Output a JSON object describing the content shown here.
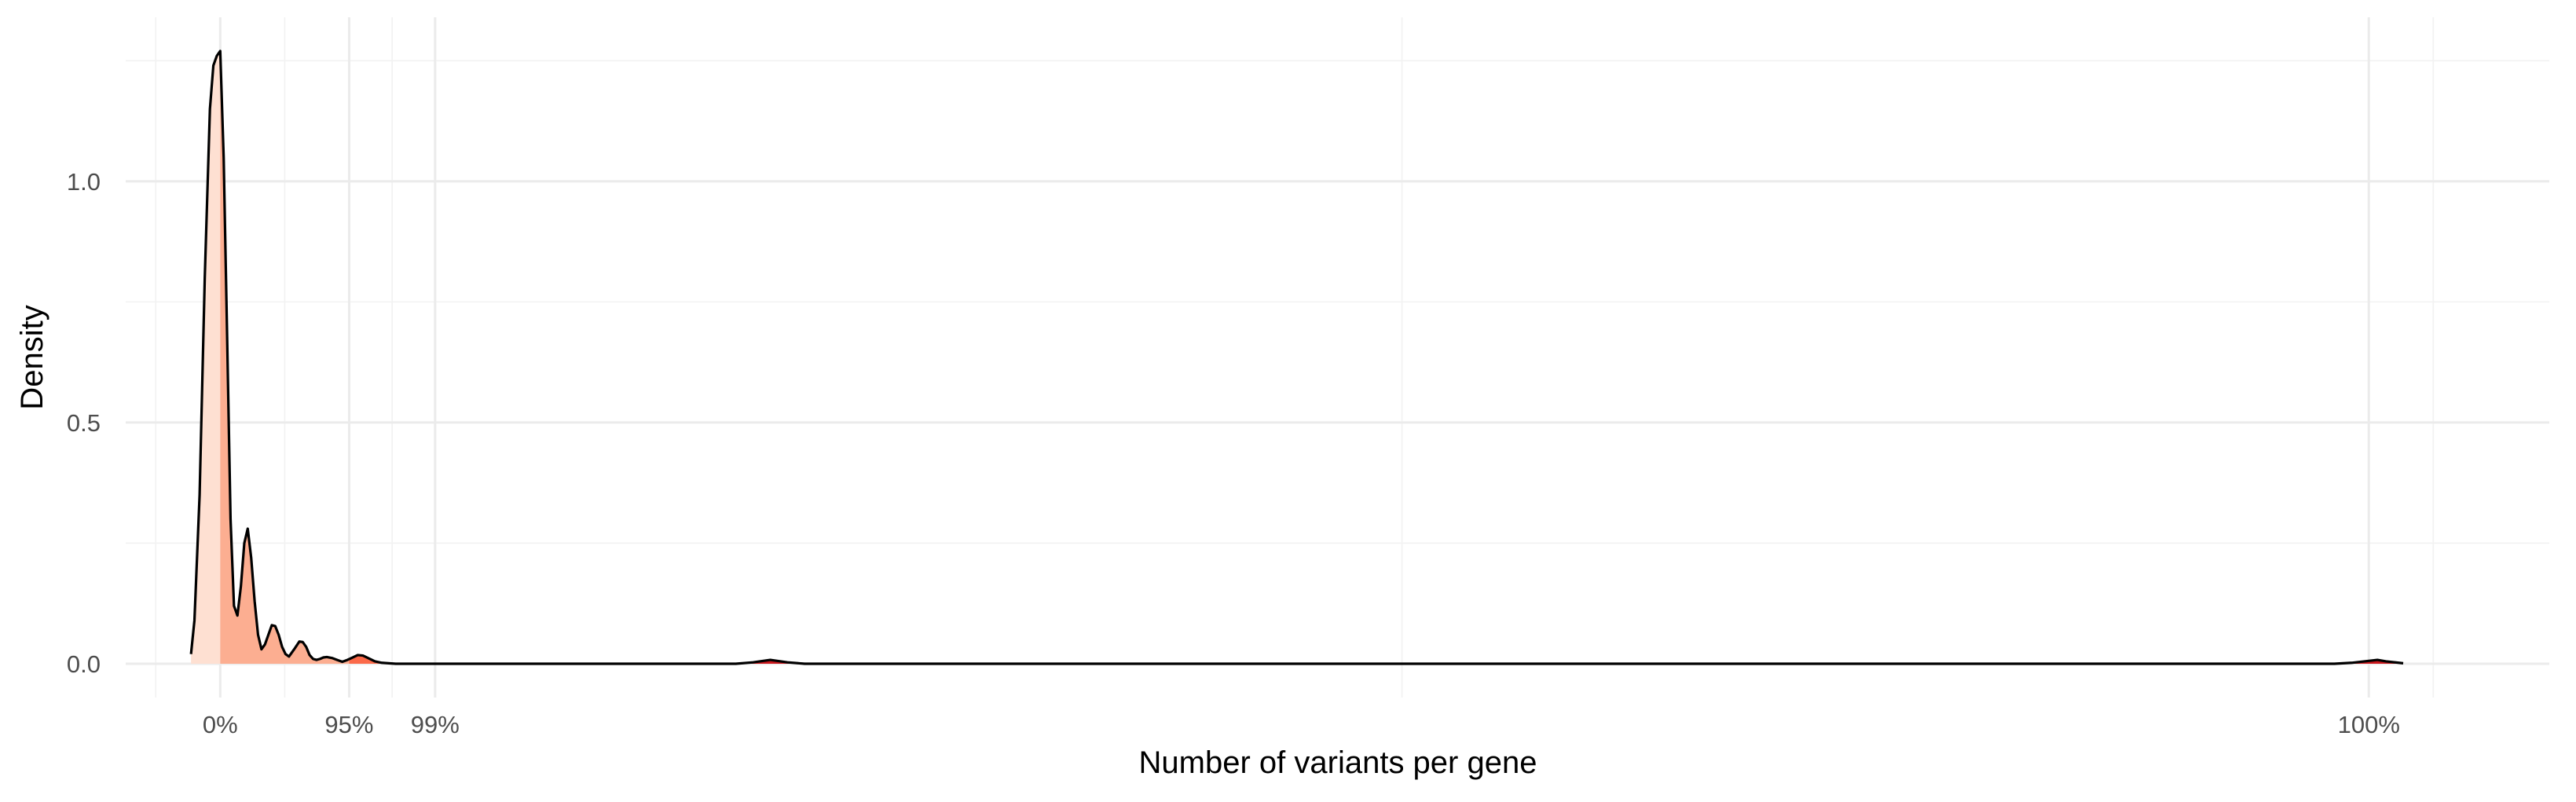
{
  "chart_data": {
    "type": "area",
    "title": "",
    "xlabel": "Number of variants per gene",
    "ylabel": "Density",
    "xlim": [
      -0.55,
      13.55
    ],
    "ylim": [
      -0.07,
      1.34
    ],
    "y_ticks": [
      {
        "value": 0.0,
        "label": "0.0"
      },
      {
        "value": 0.5,
        "label": "0.5"
      },
      {
        "value": 1.0,
        "label": "1.0"
      }
    ],
    "x_ticks": [
      {
        "value": 0,
        "label": "0%"
      },
      {
        "value": 0.75,
        "label": "95%"
      },
      {
        "value": 1.25,
        "label": "99%"
      },
      {
        "value": 12.5,
        "label": "100%"
      }
    ],
    "x_minor_gridlines": [
      -0.375,
      0.375,
      1.0,
      6.875,
      12.875
    ],
    "y_minor_gridlines": [
      0.25,
      0.75,
      1.25
    ],
    "grid": true,
    "legend": "none",
    "series": [
      {
        "x": [
          -0.17,
          -0.15,
          -0.12,
          -0.09,
          -0.06,
          -0.04,
          -0.02,
          0.0,
          0.02,
          0.04,
          0.06,
          0.08,
          0.1,
          0.12,
          0.14,
          0.16,
          0.18,
          0.2,
          0.22,
          0.24,
          0.26,
          0.28,
          0.3,
          0.32,
          0.34,
          0.36,
          0.38,
          0.4,
          0.43,
          0.46,
          0.48,
          0.5,
          0.52,
          0.54,
          0.56,
          0.58,
          0.6,
          0.62,
          0.65,
          0.68,
          0.71,
          0.74,
          0.77,
          0.8,
          0.83,
          0.86,
          0.9,
          0.94,
          0.98,
          1.02,
          1.06,
          1.1,
          1.14,
          1.18,
          1.22,
          1.26,
          1.3,
          1.34,
          1.38,
          1.42,
          1.5,
          2.0,
          2.8,
          3.0,
          3.1,
          3.2,
          3.3,
          3.4,
          3.5,
          4.0,
          6.0,
          8.0,
          10.0,
          12.0,
          12.3,
          12.4,
          12.5,
          12.55,
          12.6,
          12.7
        ],
        "y": [
          0.02,
          0.09,
          0.35,
          0.8,
          1.15,
          1.24,
          1.26,
          1.27,
          1.05,
          0.68,
          0.3,
          0.12,
          0.1,
          0.16,
          0.25,
          0.28,
          0.22,
          0.13,
          0.06,
          0.03,
          0.04,
          0.06,
          0.08,
          0.078,
          0.06,
          0.035,
          0.02,
          0.015,
          0.03,
          0.046,
          0.045,
          0.035,
          0.018,
          0.01,
          0.008,
          0.01,
          0.013,
          0.014,
          0.012,
          0.008,
          0.004,
          0.008,
          0.013,
          0.018,
          0.017,
          0.012,
          0.005,
          0.002,
          0.001,
          0.0,
          0.0,
          0.0,
          0.0,
          0.0,
          0.0,
          0.0,
          0.0,
          0.0,
          0.0,
          0.0,
          0.0,
          0.0,
          0.0,
          0.0,
          0.003,
          0.008,
          0.003,
          0.0,
          0.0,
          0.0,
          0.0,
          0.0,
          0.0,
          0.0,
          0.0,
          0.002,
          0.006,
          0.008,
          0.005,
          0.001
        ]
      }
    ],
    "quantile_fill_bands": [
      {
        "from": -0.17,
        "to": 0.0,
        "color": "#fee0d2"
      },
      {
        "from": 0.0,
        "to": 0.75,
        "color": "#fcae91"
      },
      {
        "from": 0.75,
        "to": 1.25,
        "color": "#fb6a4a"
      },
      {
        "from": 1.25,
        "to": 12.7,
        "color": "#cb181d"
      }
    ],
    "colors": {
      "line": "#000000",
      "grid_major": "#ebebeb",
      "grid_minor": "#f2f2f2"
    }
  }
}
